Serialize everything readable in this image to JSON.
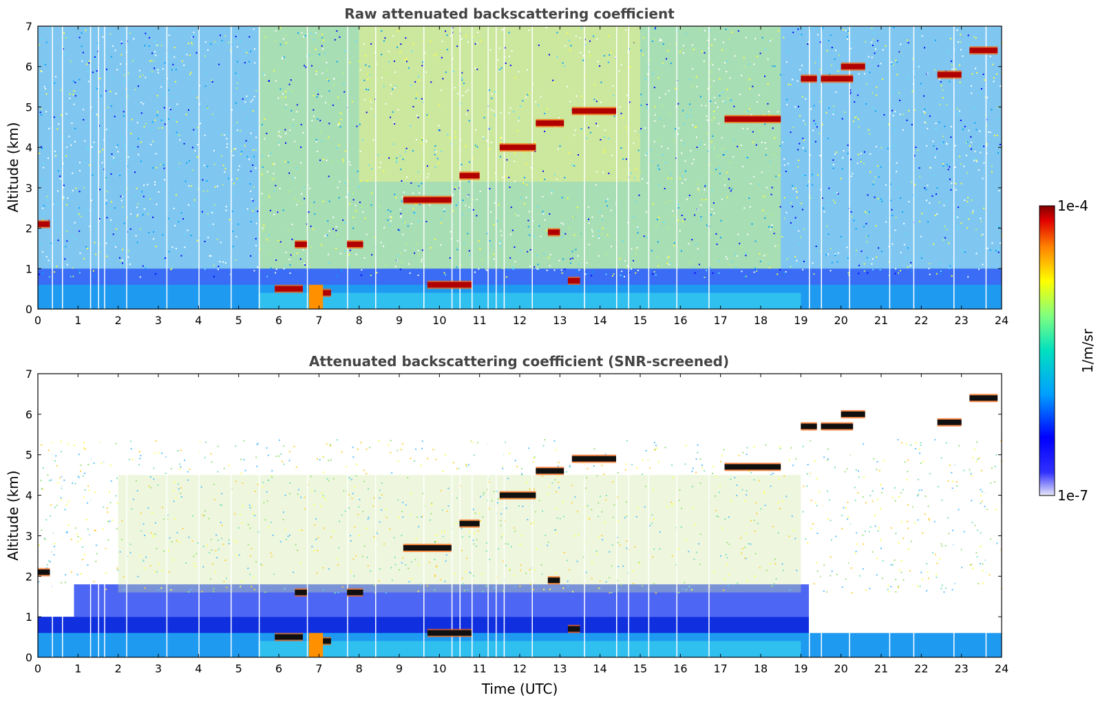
{
  "chart_data": [
    {
      "type": "heatmap",
      "title": "Raw attenuated backscattering coefficient",
      "xlabel": "",
      "ylabel": "Altitude (km)",
      "xlim": [
        0,
        24
      ],
      "ylim": [
        0,
        7
      ],
      "x_ticks": [
        0,
        1,
        2,
        3,
        4,
        5,
        6,
        7,
        8,
        9,
        10,
        11,
        12,
        13,
        14,
        15,
        16,
        17,
        18,
        19,
        20,
        21,
        22,
        23,
        24
      ],
      "y_ticks": [
        0,
        1,
        2,
        3,
        4,
        5,
        6,
        7
      ],
      "boundary_layer_top_km": 0.6,
      "aerosol_layer_top_km": 1.0,
      "cloud_features": [
        {
          "t_start": 0.0,
          "t_end": 0.3,
          "alt_km": 2.1
        },
        {
          "t_start": 5.9,
          "t_end": 6.6,
          "alt_km": 0.5
        },
        {
          "t_start": 6.4,
          "t_end": 6.7,
          "alt_km": 1.6
        },
        {
          "t_start": 6.85,
          "t_end": 7.3,
          "alt_km": 0.4
        },
        {
          "t_start": 7.7,
          "t_end": 8.1,
          "alt_km": 1.6
        },
        {
          "t_start": 9.1,
          "t_end": 10.3,
          "alt_km": 2.7
        },
        {
          "t_start": 9.7,
          "t_end": 10.8,
          "alt_km": 0.6
        },
        {
          "t_start": 10.5,
          "t_end": 11.0,
          "alt_km": 3.3
        },
        {
          "t_start": 11.5,
          "t_end": 12.4,
          "alt_km": 4.0
        },
        {
          "t_start": 12.4,
          "t_end": 13.1,
          "alt_km": 4.6
        },
        {
          "t_start": 12.7,
          "t_end": 13.0,
          "alt_km": 1.9
        },
        {
          "t_start": 13.2,
          "t_end": 13.5,
          "alt_km": 0.7
        },
        {
          "t_start": 13.3,
          "t_end": 14.4,
          "alt_km": 4.9
        },
        {
          "t_start": 17.1,
          "t_end": 17.7,
          "alt_km": 4.7
        },
        {
          "t_start": 17.7,
          "t_end": 18.5,
          "alt_km": 4.7
        },
        {
          "t_start": 19.0,
          "t_end": 19.4,
          "alt_km": 5.7
        },
        {
          "t_start": 19.5,
          "t_end": 20.3,
          "alt_km": 5.7
        },
        {
          "t_start": 20.0,
          "t_end": 20.6,
          "alt_km": 6.0
        },
        {
          "t_start": 22.4,
          "t_end": 23.0,
          "alt_km": 5.8
        },
        {
          "t_start": 23.2,
          "t_end": 23.9,
          "alt_km": 6.4
        }
      ]
    },
    {
      "type": "heatmap",
      "title": "Attenuated backscattering coefficient (SNR-screened)",
      "xlabel": "Time (UTC)",
      "ylabel": "Altitude (km)",
      "xlim": [
        0,
        24
      ],
      "ylim": [
        0,
        7
      ],
      "x_ticks": [
        0,
        1,
        2,
        3,
        4,
        5,
        6,
        7,
        8,
        9,
        10,
        11,
        12,
        13,
        14,
        15,
        16,
        17,
        18,
        19,
        20,
        21,
        22,
        23,
        24
      ],
      "y_ticks": [
        0,
        1,
        2,
        3,
        4,
        5,
        6,
        7
      ],
      "boundary_layer_top_km": 0.6,
      "aerosol_layer_top_km": 1.6
    }
  ],
  "colorbar": {
    "label": "1/m/sr",
    "min_label": "1e-7",
    "max_label": "1e-4",
    "scale": "log",
    "colors": [
      "#e8e8f8",
      "#0000ff",
      "#00a0ff",
      "#00e0c0",
      "#80ff80",
      "#ffff00",
      "#ff8000",
      "#e00000",
      "#800000"
    ]
  }
}
